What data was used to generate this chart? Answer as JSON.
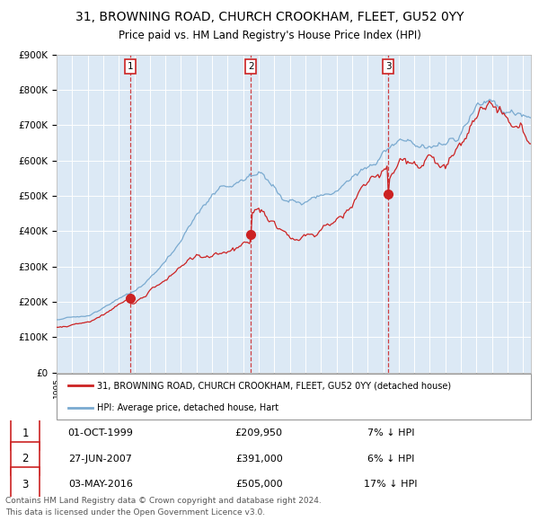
{
  "title": "31, BROWNING ROAD, CHURCH CROOKHAM, FLEET, GU52 0YY",
  "subtitle": "Price paid vs. HM Land Registry's House Price Index (HPI)",
  "legend_property": "31, BROWNING ROAD, CHURCH CROOKHAM, FLEET, GU52 0YY (detached house)",
  "legend_hpi": "HPI: Average price, detached house, Hart",
  "transactions": [
    {
      "num": 1,
      "date": "01-OCT-1999",
      "year": 1999.75,
      "price": 209950,
      "pct": "7%",
      "dir": "↓"
    },
    {
      "num": 2,
      "date": "27-JUN-2007",
      "year": 2007.49,
      "price": 391000,
      "pct": "6%",
      "dir": "↓"
    },
    {
      "num": 3,
      "date": "03-MAY-2016",
      "year": 2016.33,
      "price": 505000,
      "pct": "17%",
      "dir": "↓"
    }
  ],
  "hpi_color": "#7aaad0",
  "property_color": "#cc2222",
  "dashed_color": "#cc2222",
  "background_color": "#dce9f5",
  "ylim": [
    0,
    900000
  ],
  "xlim_start": 1995.0,
  "xlim_end": 2025.5,
  "footer": "Contains HM Land Registry data © Crown copyright and database right 2024.\nThis data is licensed under the Open Government Licence v3.0.",
  "yticks": [
    0,
    100000,
    200000,
    300000,
    400000,
    500000,
    600000,
    700000,
    800000,
    900000
  ]
}
